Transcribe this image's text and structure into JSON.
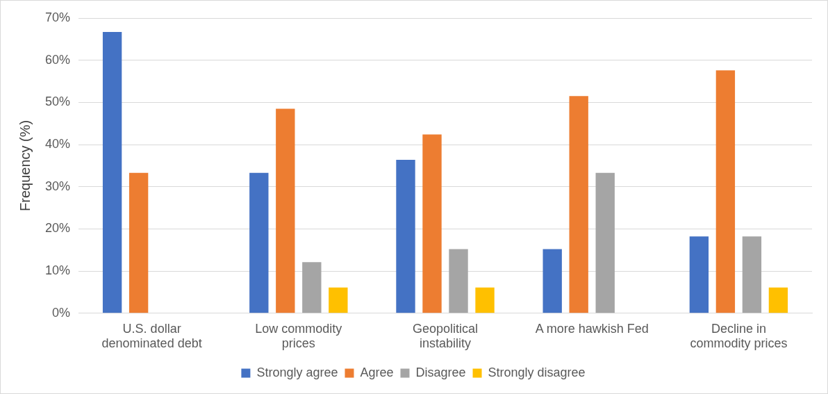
{
  "chart_data": {
    "type": "bar",
    "ylabel": "Frequency (%)",
    "categories": [
      "U.S. dollar denominated debt",
      "Low commodity prices",
      "Geopolitical instability",
      "A more hawkish Fed",
      "Decline in commodity prices"
    ],
    "series": [
      {
        "name": "Strongly agree",
        "color": "#4472c4",
        "values": [
          66.7,
          33.3,
          36.4,
          15.2,
          18.2
        ]
      },
      {
        "name": "Agree",
        "color": "#ed7d31",
        "values": [
          33.3,
          48.5,
          42.4,
          51.5,
          57.6
        ]
      },
      {
        "name": "Disagree",
        "color": "#a5a5a5",
        "values": [
          0,
          12.1,
          15.2,
          33.3,
          18.2
        ]
      },
      {
        "name": "Strongly disagree",
        "color": "#ffc000",
        "values": [
          0,
          6.1,
          6.1,
          0,
          6.1
        ]
      }
    ],
    "ylim": [
      0,
      70
    ],
    "yticks": [
      {
        "value": 0,
        "label": "0%"
      },
      {
        "value": 10,
        "label": "10%"
      },
      {
        "value": 20,
        "label": "20%"
      },
      {
        "value": 30,
        "label": "30%"
      },
      {
        "value": 40,
        "label": "40%"
      },
      {
        "value": 50,
        "label": "50%"
      },
      {
        "value": 60,
        "label": "60%"
      },
      {
        "value": 70,
        "label": "70%"
      }
    ],
    "grid": "y",
    "legend": "bottom"
  }
}
